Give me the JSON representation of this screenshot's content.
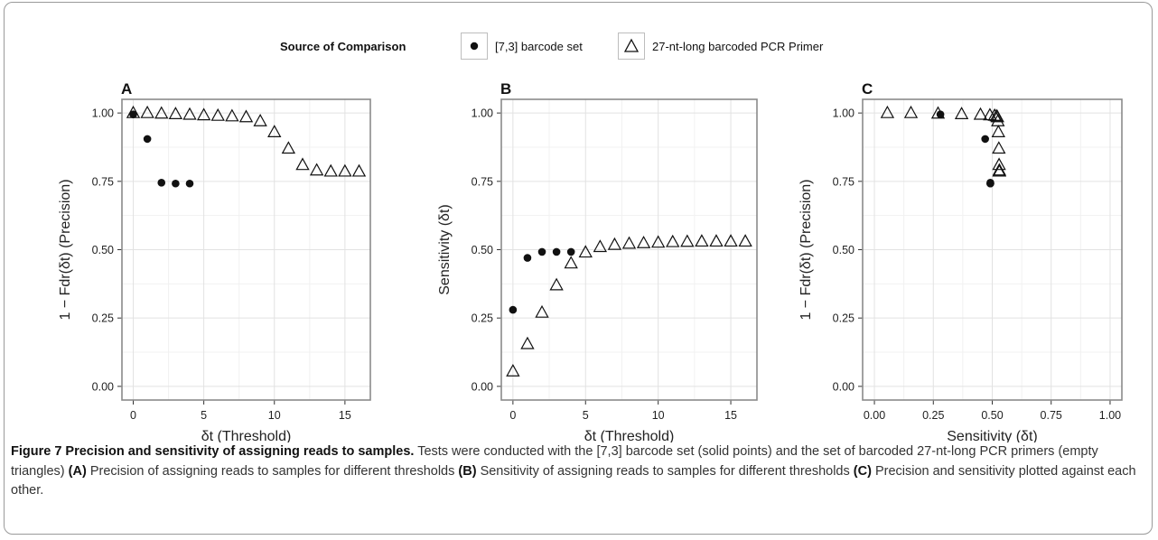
{
  "legend": {
    "title": "Source of Comparison",
    "items": [
      {
        "label": "[7,3] barcode set",
        "shape": "filled-circle"
      },
      {
        "label": "27-nt-long barcoded PCR Primer",
        "shape": "open-triangle"
      }
    ]
  },
  "chart_data": [
    {
      "panel": "A",
      "type": "scatter",
      "xlabel": "δt (Threshold)",
      "ylabel": "1 − Fdr(δt) (Precision)",
      "xlim": [
        -0.8,
        16.8
      ],
      "ylim": [
        -0.05,
        1.05
      ],
      "xticks": [
        "0",
        "5",
        "10",
        "15"
      ],
      "yticks": [
        "0.00",
        "0.25",
        "0.50",
        "0.75",
        "1.00"
      ],
      "grid": true,
      "series": [
        {
          "name": "[7,3] barcode set",
          "marker": "filled-circle",
          "points": [
            [
              0,
              0.995
            ],
            [
              1,
              0.905
            ],
            [
              2,
              0.745
            ],
            [
              3,
              0.742
            ],
            [
              4,
              0.742
            ]
          ]
        },
        {
          "name": "27-nt-long barcoded PCR Primer",
          "marker": "open-triangle",
          "points": [
            [
              0,
              1.0
            ],
            [
              1,
              1.0
            ],
            [
              2,
              0.998
            ],
            [
              3,
              0.996
            ],
            [
              4,
              0.994
            ],
            [
              5,
              0.992
            ],
            [
              6,
              0.99
            ],
            [
              7,
              0.988
            ],
            [
              8,
              0.985
            ],
            [
              9,
              0.97
            ],
            [
              10,
              0.93
            ],
            [
              11,
              0.87
            ],
            [
              12,
              0.81
            ],
            [
              13,
              0.79
            ],
            [
              14,
              0.786
            ],
            [
              15,
              0.786
            ],
            [
              16,
              0.786
            ]
          ]
        }
      ]
    },
    {
      "panel": "B",
      "type": "scatter",
      "xlabel": "δt (Threshold)",
      "ylabel": "Sensitivity (δt)",
      "xlim": [
        -0.8,
        16.8
      ],
      "ylim": [
        -0.05,
        1.05
      ],
      "xticks": [
        "0",
        "5",
        "10",
        "15"
      ],
      "yticks": [
        "0.00",
        "0.25",
        "0.50",
        "0.75",
        "1.00"
      ],
      "grid": true,
      "series": [
        {
          "name": "[7,3] barcode set",
          "marker": "filled-circle",
          "points": [
            [
              0,
              0.28
            ],
            [
              1,
              0.47
            ],
            [
              2,
              0.492
            ],
            [
              3,
              0.492
            ],
            [
              4,
              0.492
            ]
          ]
        },
        {
          "name": "27-nt-long barcoded PCR Primer",
          "marker": "open-triangle",
          "points": [
            [
              0,
              0.055
            ],
            [
              1,
              0.155
            ],
            [
              2,
              0.27
            ],
            [
              3,
              0.37
            ],
            [
              4,
              0.45
            ],
            [
              5,
              0.49
            ],
            [
              6,
              0.51
            ],
            [
              7,
              0.518
            ],
            [
              8,
              0.522
            ],
            [
              9,
              0.524
            ],
            [
              10,
              0.526
            ],
            [
              11,
              0.528
            ],
            [
              12,
              0.529
            ],
            [
              13,
              0.53
            ],
            [
              14,
              0.53
            ],
            [
              15,
              0.53
            ],
            [
              16,
              0.53
            ]
          ]
        }
      ]
    },
    {
      "panel": "C",
      "type": "scatter",
      "xlabel": "Sensitivity (δt)",
      "ylabel": "1 − Fdr(δt) (Precision)",
      "xlim": [
        -0.05,
        1.05
      ],
      "ylim": [
        -0.05,
        1.05
      ],
      "xticks": [
        "0.00",
        "0.25",
        "0.50",
        "0.75",
        "1.00"
      ],
      "yticks": [
        "0.00",
        "0.25",
        "0.50",
        "0.75",
        "1.00"
      ],
      "grid": true,
      "series": [
        {
          "name": "[7,3] barcode set",
          "marker": "filled-circle",
          "points": [
            [
              0.28,
              0.995
            ],
            [
              0.47,
              0.905
            ],
            [
              0.492,
              0.745
            ],
            [
              0.492,
              0.742
            ],
            [
              0.492,
              0.742
            ]
          ]
        },
        {
          "name": "27-nt-long barcoded PCR Primer",
          "marker": "open-triangle",
          "points": [
            [
              0.055,
              1.0
            ],
            [
              0.155,
              1.0
            ],
            [
              0.27,
              0.998
            ],
            [
              0.37,
              0.996
            ],
            [
              0.45,
              0.994
            ],
            [
              0.49,
              0.992
            ],
            [
              0.51,
              0.99
            ],
            [
              0.518,
              0.988
            ],
            [
              0.522,
              0.985
            ],
            [
              0.524,
              0.97
            ],
            [
              0.526,
              0.93
            ],
            [
              0.528,
              0.87
            ],
            [
              0.529,
              0.81
            ],
            [
              0.53,
              0.79
            ],
            [
              0.53,
              0.786
            ],
            [
              0.53,
              0.786
            ],
            [
              0.53,
              0.786
            ]
          ]
        }
      ]
    }
  ],
  "caption": {
    "figure_label": "Figure 7 Precision and sensitivity of assigning reads to samples.",
    "text1": " Tests were conducted with the [7,3] barcode set (solid points) and the set of barcoded 27-nt-long PCR primers (empty triangles) ",
    "ref_a": "(A)",
    "text2": " Precision of assigning reads to samples for different thresholds ",
    "ref_b": "(B)",
    "text3": " Sensitivity of assigning reads to samples for different thresholds ",
    "ref_c": "(C)",
    "text4": " Precision and sensitivity plotted against each other."
  }
}
